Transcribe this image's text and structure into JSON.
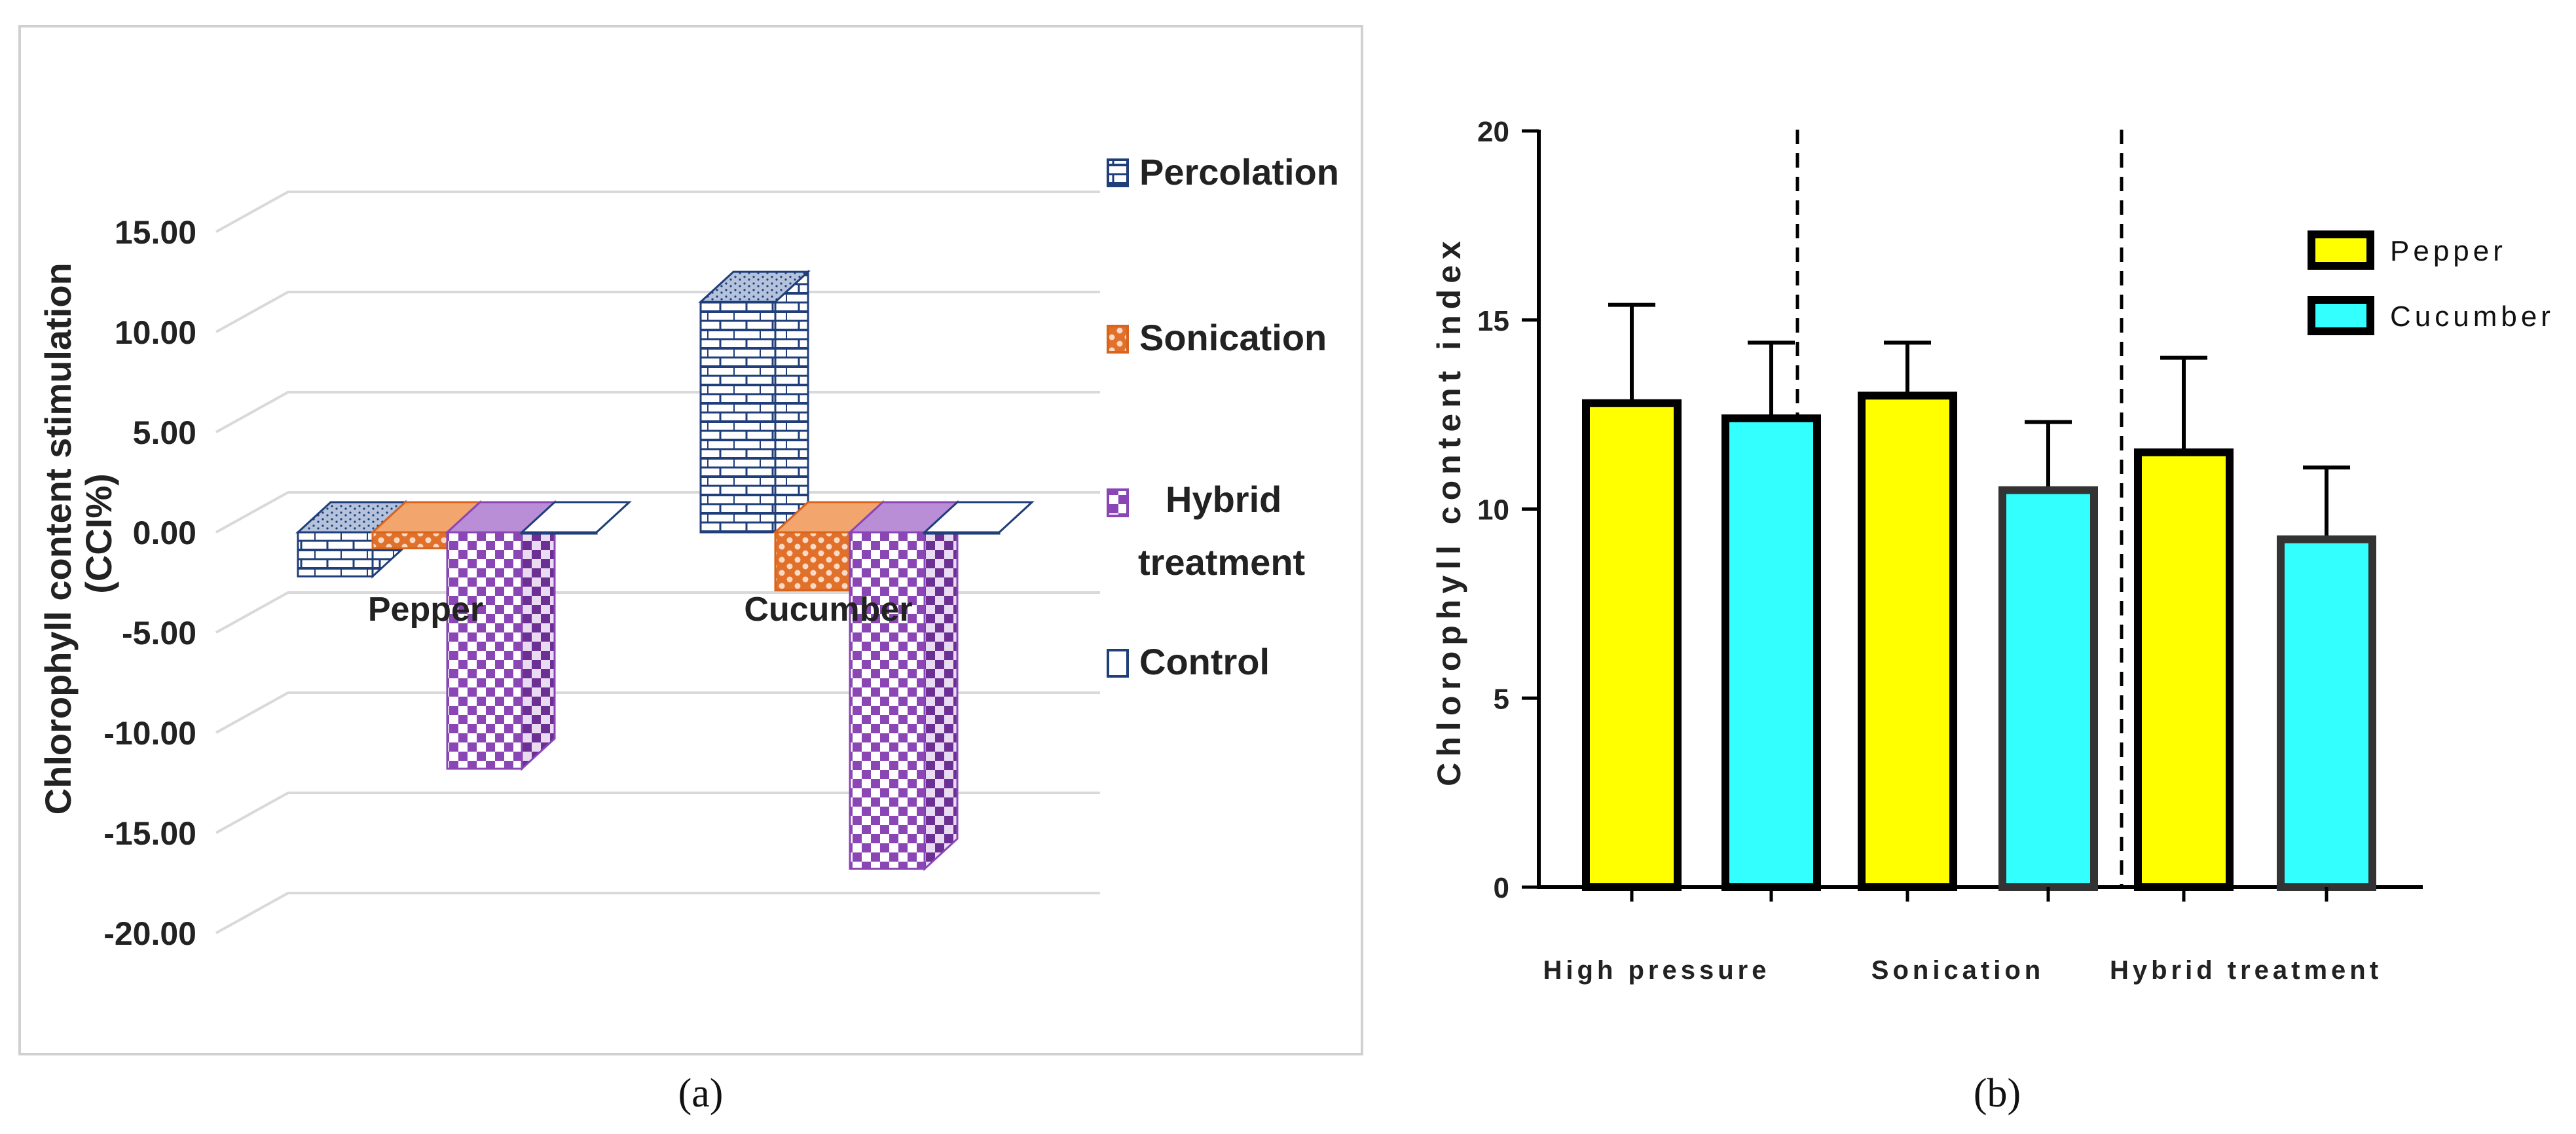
{
  "captions": {
    "a": "(a)",
    "b": "(b)"
  },
  "chart_data": [
    {
      "type": "bar",
      "subtype": "3d-clustered-bar",
      "title": "",
      "ylabel": "Chlorophyll content  stimulation (CCI%)",
      "ylabel_lines": [
        "Chlorophyll content  stimulation",
        "(CCI%)"
      ],
      "ylim": [
        -20,
        15
      ],
      "yticks": [
        15,
        10,
        5,
        0,
        -5,
        -10,
        -15,
        -20
      ],
      "ytick_labels": [
        "15.00",
        "10.00",
        "5.00",
        "0.00",
        "-5.00",
        "-10.00",
        "-15.00",
        "-20.00"
      ],
      "categories": [
        "Pepper",
        "Cucumber"
      ],
      "series": [
        {
          "name": "Percolation",
          "values": [
            -2.2,
            11.5
          ],
          "color": "#1f3e7a"
        },
        {
          "name": "Sonication",
          "values": [
            -0.8,
            -2.9
          ],
          "color": "#d9641e"
        },
        {
          "name": "Hybrid treatment",
          "values": [
            -11.8,
            -16.8
          ],
          "color": "#8a46b4"
        },
        {
          "name": "Control",
          "values": [
            0,
            0
          ],
          "color": "#1f3e7a"
        }
      ],
      "legend": {
        "position": "right",
        "labels": [
          "Percolation",
          "Sonication",
          "Hybrid",
          "treatment",
          "Control"
        ]
      },
      "grid": true
    },
    {
      "type": "bar",
      "title": "",
      "ylabel": "Chlorophyll content index",
      "ylim": [
        0,
        20
      ],
      "yticks": [
        0,
        5,
        10,
        15,
        20
      ],
      "categories": [
        "High pressure",
        "Sonication",
        "Hybrid treatment"
      ],
      "series": [
        {
          "name": "Pepper",
          "values": [
            12.8,
            13.0,
            11.5
          ],
          "errors": [
            2.6,
            1.4,
            2.5
          ],
          "color": "#ffff00"
        },
        {
          "name": "Cucumber",
          "values": [
            12.4,
            10.5,
            9.2
          ],
          "errors": [
            2.0,
            1.8,
            1.9
          ],
          "color": "#33ffff"
        }
      ],
      "legend": {
        "position": "top-right"
      },
      "grid": false,
      "separators": "dashed vertical lines between treatment groups"
    }
  ]
}
